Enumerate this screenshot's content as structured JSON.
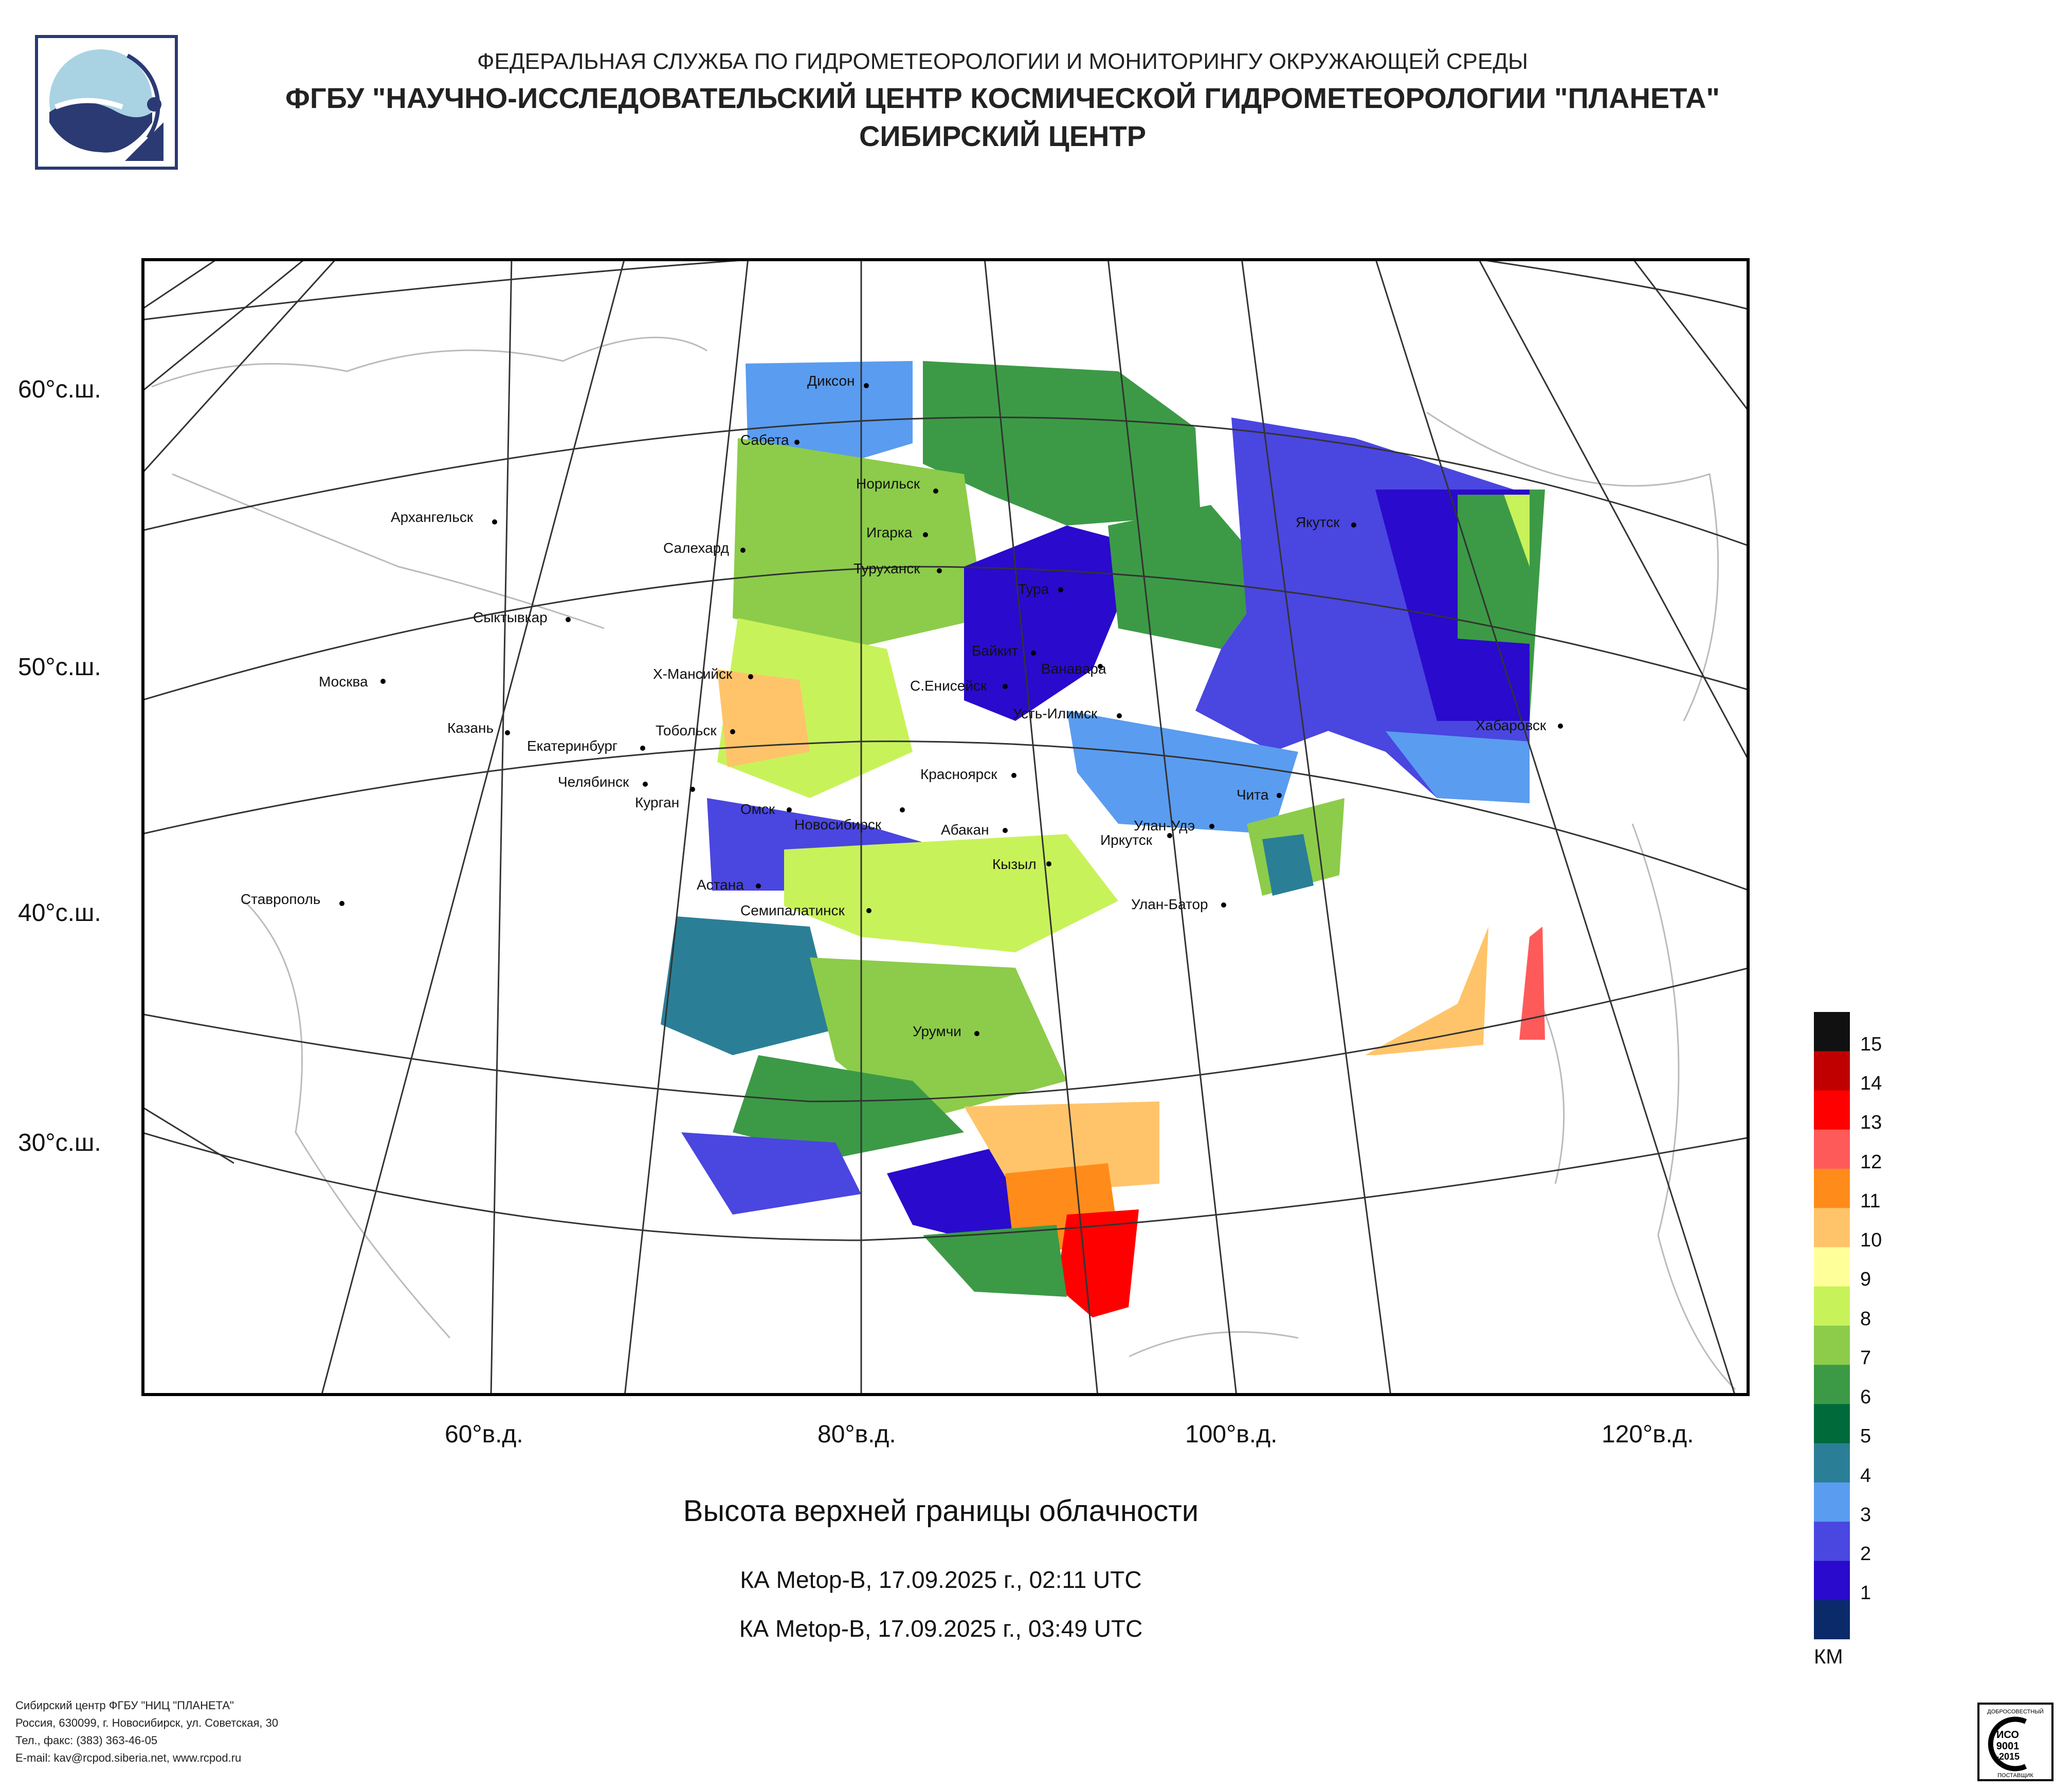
{
  "header": {
    "agency": "ФЕДЕРАЛЬНАЯ СЛУЖБА ПО ГИДРОМЕТЕОРОЛОГИИ И МОНИТОРИНГУ ОКРУЖАЮЩЕЙ СРЕДЫ",
    "institute": "ФГБУ \"НАУЧНО-ИССЛЕДОВАТЕЛЬСКИЙ ЦЕНТР КОСМИЧЕСКОЙ ГИДРОМЕТЕОРОЛОГИИ \"ПЛАНЕТА\"",
    "branch": "СИБИРСКИЙ ЦЕНТР"
  },
  "map": {
    "lat_labels": [
      "60°с.ш.",
      "50°с.ш.",
      "40°с.ш.",
      "30°с.ш."
    ],
    "lon_labels": [
      "60°в.д.",
      "80°в.д.",
      "100°в.д.",
      "120°в.д."
    ],
    "cities": [
      "Диксон",
      "Сабета",
      "Норильск",
      "Архангельск",
      "Игарка",
      "Салехард",
      "Туруханск",
      "Тура",
      "Якутск",
      "Сыктывкар",
      "Байкит",
      "Ванавара",
      "Х-Мансийск",
      "Москва",
      "С.Енисейск",
      "Усть-Илимск",
      "Хабаровск",
      "Казань",
      "Тобольск",
      "Екатеринбург",
      "Красноярск",
      "Челябинск",
      "Чита",
      "Курган",
      "Омск",
      "Новосибирск",
      "Абакан",
      "Улан-Удэ",
      "Иркутск",
      "Кызыл",
      "Астана",
      "Ставрополь",
      "Семипалатинск",
      "Улан-Батор",
      "Урумчи"
    ]
  },
  "caption": {
    "title": "Высота верхней границы облачности",
    "pass1": "КА Metop-B, 17.09.2025 г., 02:11 UTC",
    "pass2": "КА Metop-B, 17.09.2025 г., 03:49 UTC"
  },
  "legend": {
    "unit": "КМ",
    "levels": [
      "15",
      "14",
      "13",
      "12",
      "11",
      "10",
      "9",
      "8",
      "7",
      "6",
      "5",
      "4",
      "3",
      "2",
      "1"
    ],
    "colors": [
      "#111111",
      "#c00000",
      "#ff0000",
      "#ff5a5a",
      "#ff8c1a",
      "#ffc46a",
      "#ffff99",
      "#c8f25a",
      "#8ccc4a",
      "#3c9a46",
      "#006a3a",
      "#2a7f96",
      "#5a9cf0",
      "#4a46e0",
      "#2a0acc",
      "#0a2a6a"
    ]
  },
  "footer": {
    "line1": "Сибирский центр ФГБУ \"НИЦ \"ПЛАНЕТА\"",
    "line2": "Россия, 630099, г. Новосибирск, ул. Советская, 30",
    "line3": "Тел., факс: (383) 363-46-05",
    "line4": "E-mail: kav@rcpod.siberia.net, www.rcpod.ru"
  },
  "iso_badge": {
    "top": "ДОБРОСОВЕСТНЫЙ",
    "mark": "ИСО",
    "num": "9001",
    "year": "-2015",
    "bottom": "ПОСТАВЩИК"
  }
}
